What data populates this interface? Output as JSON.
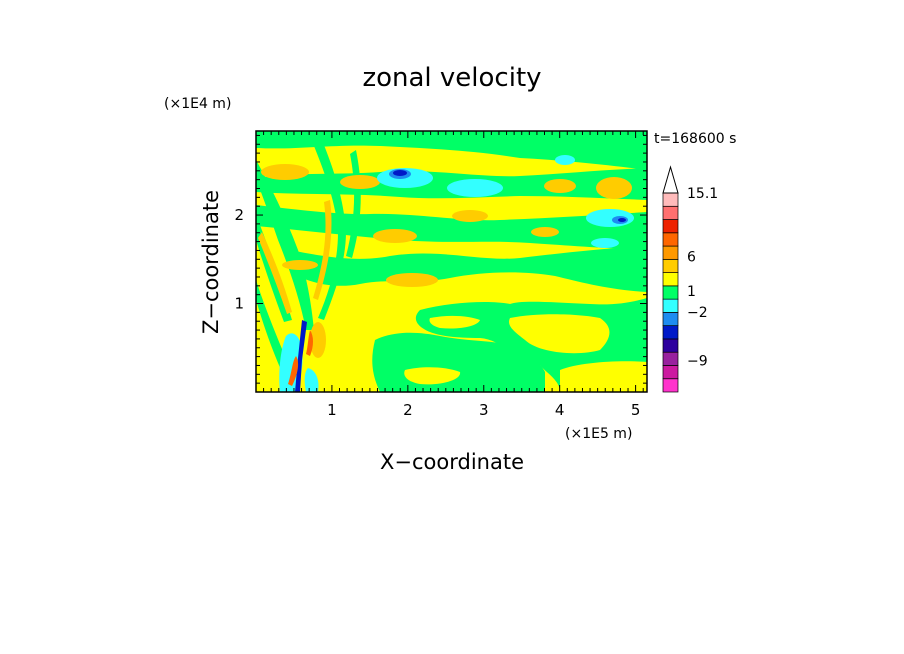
{
  "chart_data": {
    "type": "heatmap",
    "title": "zonal velocity",
    "xlabel": "X−coordinate",
    "ylabel": "Z−coordinate",
    "x_unit": "(×1E5 m)",
    "y_unit": "(×1E4 m)",
    "time_label": "t=168600 s",
    "x_range": [
      0,
      5.15
    ],
    "y_range": [
      0,
      2.95
    ],
    "x_ticks": [
      "1",
      "2",
      "3",
      "4",
      "5"
    ],
    "x_tick_values": [
      1,
      2,
      3,
      4,
      5
    ],
    "y_ticks": [
      "1",
      "2"
    ],
    "y_tick_values": [
      1,
      2
    ],
    "grid": false,
    "colorbar": {
      "position": "right",
      "levels": [
        {
          "color": "#ff33cc"
        },
        {
          "color": "#cc1aa0"
        },
        {
          "color": "#99219e"
        },
        {
          "color": "#2d009e"
        },
        {
          "color": "#0019c8"
        },
        {
          "color": "#1e8cf0"
        },
        {
          "color": "#33ffff"
        },
        {
          "color": "#00ff66"
        },
        {
          "color": "#ffff00"
        },
        {
          "color": "#ffcc00"
        },
        {
          "color": "#ff9900"
        },
        {
          "color": "#ff6600"
        },
        {
          "color": "#ee2200"
        },
        {
          "color": "#ff7070"
        },
        {
          "color": "#ffbbbb"
        }
      ],
      "labels": [
        "15.1",
        "6",
        "1",
        "−2",
        "−9"
      ],
      "label_values": [
        15.1,
        6,
        1,
        -2,
        -9
      ]
    }
  }
}
